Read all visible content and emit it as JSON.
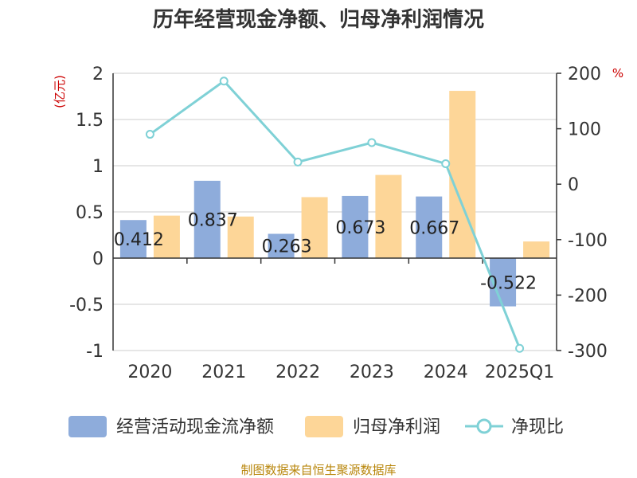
{
  "chart_data": {
    "type": "bar",
    "title": "历年经营现金净额、归母净利润情况",
    "categories": [
      "2020",
      "2021",
      "2022",
      "2023",
      "2024",
      "2025Q1"
    ],
    "series": [
      {
        "name": "经营活动现金流净额",
        "type": "bar",
        "axis": "left",
        "values": [
          0.412,
          0.837,
          0.263,
          0.673,
          0.667,
          -0.522
        ],
        "labels": [
          "0.412",
          "0.837",
          "0.263",
          "0.673",
          "0.667",
          "-0.522"
        ],
        "color": "#8eacdb"
      },
      {
        "name": "归母净利润",
        "type": "bar",
        "axis": "left",
        "values": [
          0.46,
          0.45,
          0.66,
          0.9,
          1.81,
          0.18
        ],
        "color": "#fdd698"
      },
      {
        "name": "净现比",
        "type": "line",
        "axis": "right",
        "values": [
          90,
          186,
          40,
          75,
          37,
          -296
        ],
        "color": "#7fd1d6"
      }
    ],
    "ylim_left": [
      -1,
      2
    ],
    "yticks_left": [
      "2",
      "1.5",
      "1",
      "0.5",
      "0",
      "-0.5",
      "-1"
    ],
    "ylim_right": [
      -300,
      200
    ],
    "yticks_right": [
      "200",
      "100",
      "0",
      "-100",
      "-200",
      "-300"
    ],
    "ylabel_left": "(亿元)",
    "ylabel_right": "%",
    "grid": true,
    "legend_position": "bottom",
    "source": "制图数据来自恒生聚源数据库"
  }
}
